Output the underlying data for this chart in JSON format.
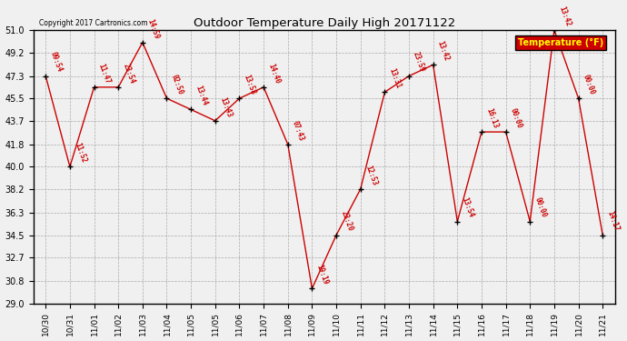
{
  "title": "Outdoor Temperature Daily High 20171122",
  "copyright": "Copyright 2017 Cartronics.com",
  "legend_label": "Temperature (°F)",
  "ylim": [
    29.0,
    51.0
  ],
  "yticks": [
    29.0,
    30.8,
    32.7,
    34.5,
    36.3,
    38.2,
    40.0,
    41.8,
    43.7,
    45.5,
    47.3,
    49.2,
    51.0
  ],
  "xtick_labels": [
    "10/30",
    "10/31",
    "11/01",
    "11/02",
    "11/03",
    "11/04",
    "11/05",
    "11/05",
    "11/06",
    "11/07",
    "11/08",
    "11/09",
    "11/10",
    "11/11",
    "11/12",
    "11/13",
    "11/14",
    "11/15",
    "11/16",
    "11/17",
    "11/18",
    "11/19",
    "11/20",
    "11/21"
  ],
  "points": [
    [
      0,
      47.3,
      "09:54"
    ],
    [
      1,
      40.0,
      "11:52"
    ],
    [
      2,
      46.4,
      "11:47"
    ],
    [
      3,
      46.4,
      "23:54"
    ],
    [
      4,
      50.0,
      "14:59"
    ],
    [
      5,
      45.5,
      "02:50"
    ],
    [
      6,
      44.6,
      "13:44"
    ],
    [
      7,
      43.7,
      "13:43"
    ],
    [
      8,
      45.5,
      "13:58"
    ],
    [
      9,
      46.4,
      "14:40"
    ],
    [
      10,
      41.8,
      "07:43"
    ],
    [
      11,
      30.2,
      "19:19"
    ],
    [
      12,
      34.5,
      "23:20"
    ],
    [
      13,
      38.2,
      "12:53"
    ],
    [
      14,
      46.0,
      "13:31"
    ],
    [
      15,
      47.3,
      "23:59"
    ],
    [
      16,
      48.2,
      "13:42"
    ],
    [
      17,
      35.6,
      "13:54"
    ],
    [
      18,
      42.8,
      "16:13"
    ],
    [
      19,
      42.8,
      "00:00"
    ],
    [
      20,
      35.6,
      "00:00"
    ],
    [
      21,
      51.0,
      "13:42"
    ],
    [
      22,
      45.5,
      "00:00"
    ],
    [
      23,
      34.5,
      "14:17"
    ]
  ],
  "line_color": "#cc0000",
  "marker_color": "#000000",
  "bg_color": "#f0f0f0",
  "grid_color": "#999999",
  "title_color": "#000000",
  "label_color": "#cc0000",
  "legend_bg": "#cc0000",
  "legend_text_color": "#ffff00",
  "figsize": [
    6.9,
    3.75
  ],
  "dpi": 100
}
